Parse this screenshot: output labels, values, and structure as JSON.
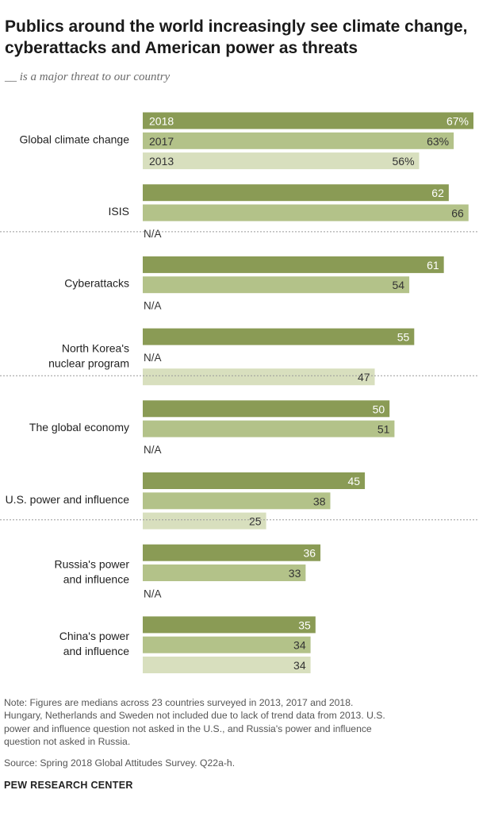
{
  "title": "Publics around the world increasingly see climate change, cyberattacks and American power as threats",
  "subtitle": "__ is a major threat to our country",
  "chart_data": {
    "type": "bar",
    "orientation": "horizontal",
    "series_names": [
      "2018",
      "2017",
      "2013"
    ],
    "colors": {
      "2018": "#8a9b55",
      "2017": "#b3c289",
      "2013": "#d8dfbe"
    },
    "na_label": "N/A",
    "xlim": [
      0,
      67
    ],
    "categories": [
      {
        "label": "Global climate change",
        "values": [
          67,
          63,
          56
        ],
        "display": [
          "67%",
          "63%",
          "56%"
        ]
      },
      {
        "label": "ISIS",
        "values": [
          62,
          66,
          null
        ],
        "display": [
          "62",
          "66",
          "N/A"
        ]
      },
      {
        "label": "Cyberattacks",
        "values": [
          61,
          54,
          null
        ],
        "display": [
          "61",
          "54",
          "N/A"
        ]
      },
      {
        "label": "North Korea's nuclear program",
        "values": [
          55,
          null,
          47
        ],
        "display": [
          "55",
          "N/A",
          "47"
        ]
      },
      {
        "label": "The global economy",
        "values": [
          50,
          51,
          null
        ],
        "display": [
          "50",
          "51",
          "N/A"
        ]
      },
      {
        "label": "U.S. power and influence",
        "values": [
          45,
          38,
          25
        ],
        "display": [
          "45",
          "38",
          "25"
        ]
      },
      {
        "label": "Russia's power and influence",
        "values": [
          36,
          33,
          null
        ],
        "display": [
          "36",
          "33",
          "N/A"
        ]
      },
      {
        "label": "China's power and influence",
        "values": [
          35,
          34,
          34
        ],
        "display": [
          "35",
          "34",
          "34"
        ]
      }
    ]
  },
  "footer": {
    "note_lines": [
      "Note: Figures are medians across 23 countries surveyed in 2013, 2017 and 2018.",
      "Hungary, Netherlands and Sweden not included due to lack of trend data from 2013. U.S.",
      "power and influence question not asked in the U.S., and Russia's power and influence",
      "question not asked in Russia."
    ],
    "source": "Source: Spring 2018 Global Attitudes Survey. Q22a-h.",
    "brand": "PEW RESEARCH CENTER"
  }
}
